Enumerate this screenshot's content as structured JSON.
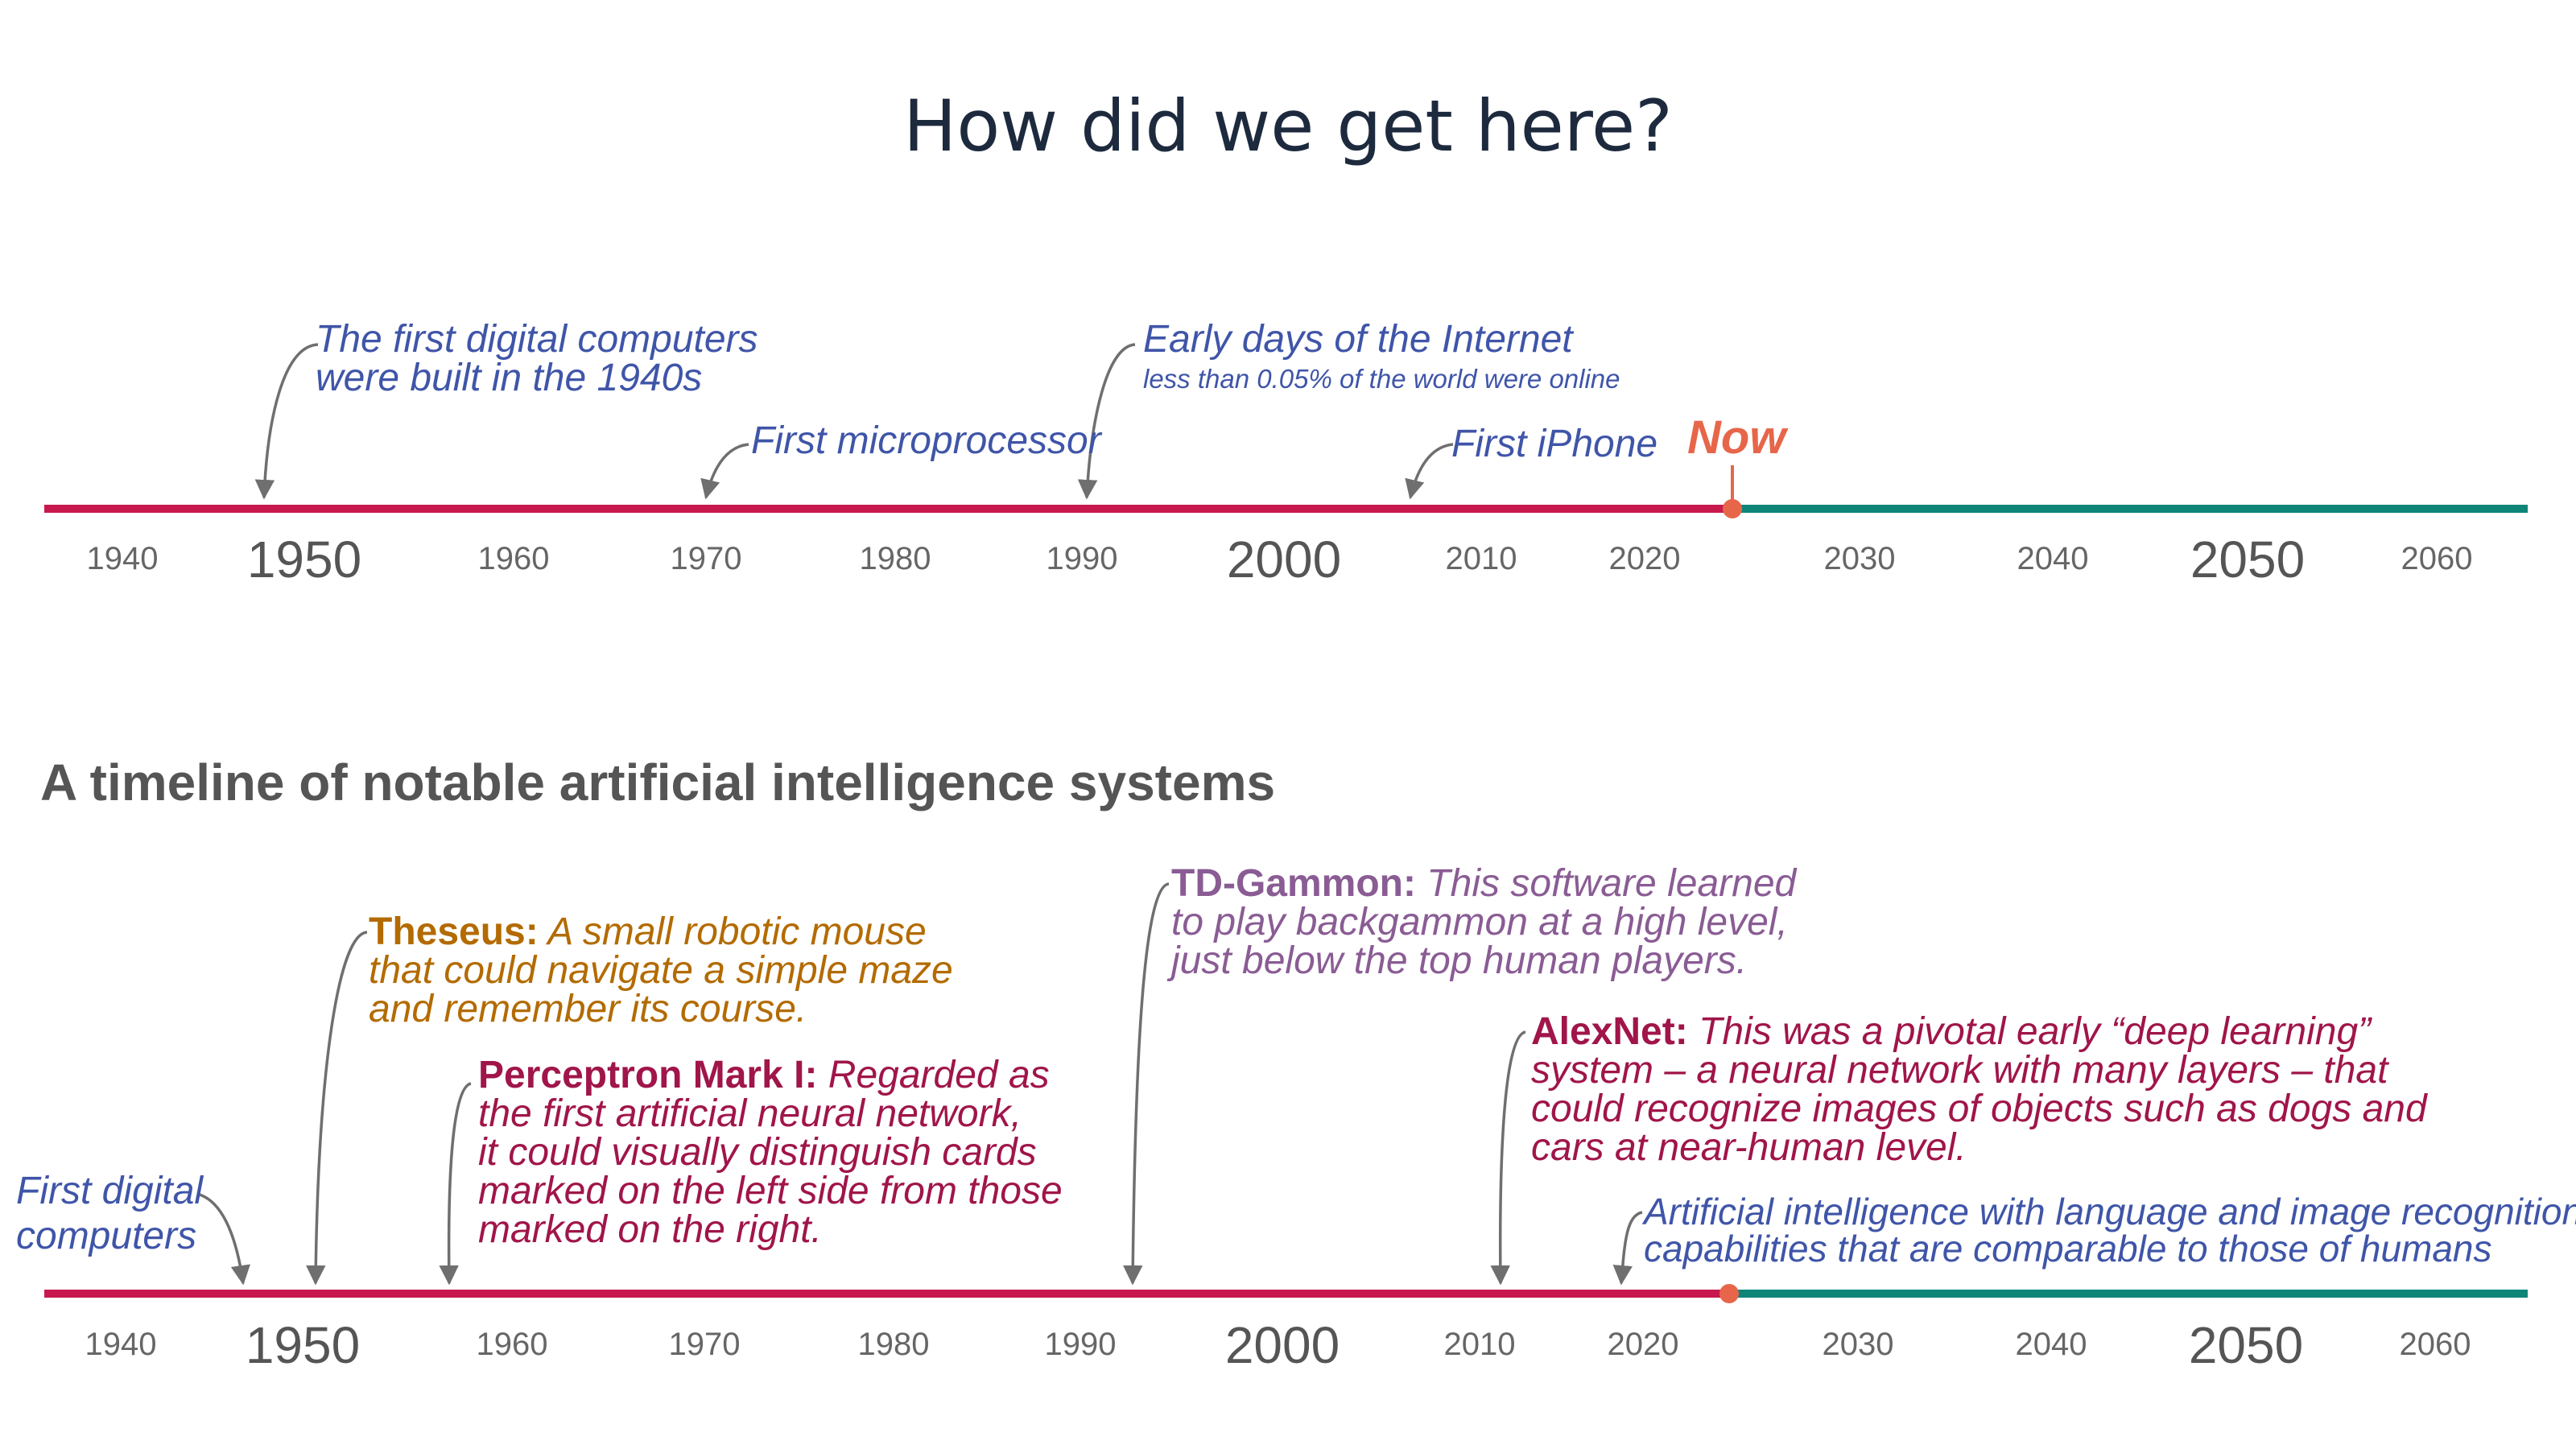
{
  "title": "How did we get here?",
  "section_title": "A timeline of notable artificial intelligence systems",
  "colors": {
    "past": "#c8194f",
    "future": "#0f8578",
    "now_marker": "#e7664a",
    "blue": "#3f55a8",
    "orange": "#b36b00",
    "crimson": "#a0154a",
    "purple": "#8a5c94"
  },
  "timeline1": {
    "ticks": [
      "1940",
      "1950",
      "1960",
      "1970",
      "1980",
      "1990",
      "2000",
      "2010",
      "2020",
      "2030",
      "2040",
      "2050",
      "2060"
    ],
    "now_label": "Now",
    "events": {
      "computers_line1": "The first digital computers",
      "computers_line2": "were built in the 1940s",
      "microprocessor": "First microprocessor",
      "internet_line1": "Early days of the Internet",
      "internet_line2": "less than 0.05% of the world were online",
      "iphone": "First iPhone"
    }
  },
  "timeline2": {
    "ticks": [
      "1940",
      "1950",
      "1960",
      "1970",
      "1980",
      "1990",
      "2000",
      "2010",
      "2020",
      "2030",
      "2040",
      "2050",
      "2060"
    ],
    "events": {
      "computers_line1": "First digital",
      "computers_line2": "computers",
      "theseus_name": "Theseus:",
      "theseus_line1": "A small robotic mouse",
      "theseus_line2": "that could navigate a simple maze",
      "theseus_line3": "and remember its course.",
      "perceptron_name": "Perceptron Mark I:",
      "perceptron_line1": "Regarded as",
      "perceptron_line2": "the first artificial neural network,",
      "perceptron_line3": "it could visually distinguish cards",
      "perceptron_line4": "marked on the left side from those",
      "perceptron_line5": "marked on the right.",
      "tdgammon_name": "TD-Gammon:",
      "tdgammon_line1": "This software learned",
      "tdgammon_line2": "to play backgammon at a high level,",
      "tdgammon_line3": "just below the top human players.",
      "alexnet_name": "AlexNet:",
      "alexnet_line1": "This was a pivotal early “deep learning”",
      "alexnet_line2": "system – a neural network with many layers – that",
      "alexnet_line3": "could recognize images of objects such as dogs and",
      "alexnet_line4": "cars at near-human level.",
      "ai_line1": "Artificial intelligence with language and image recognition",
      "ai_line2": "capabilities that are comparable to those of humans"
    }
  }
}
